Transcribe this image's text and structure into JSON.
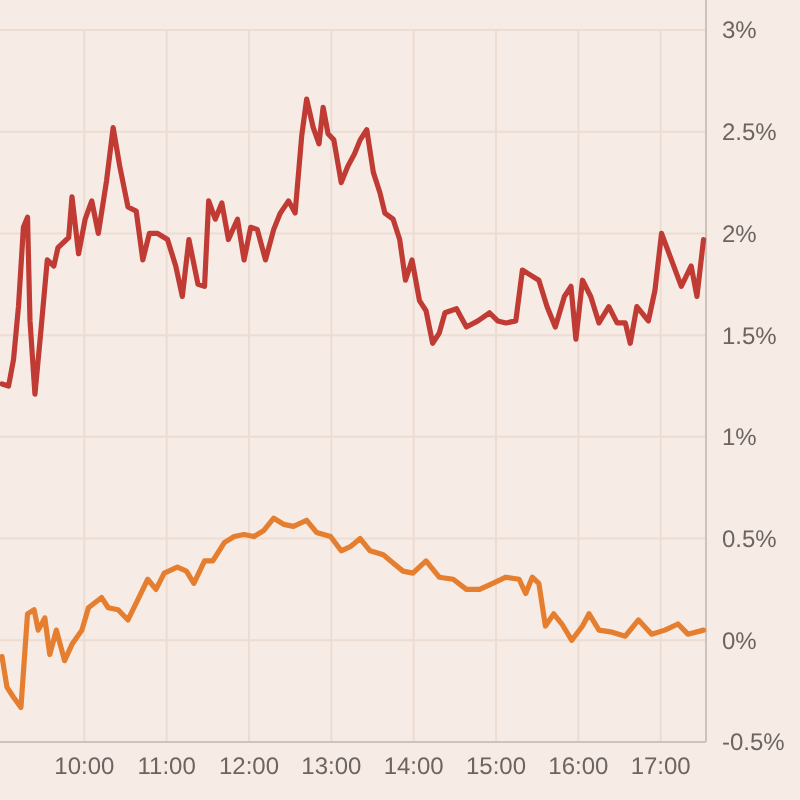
{
  "chart_data": {
    "type": "line",
    "xlim": [
      9,
      17.55
    ],
    "ylim": [
      -0.5,
      3
    ],
    "xticks": [
      {
        "value": 10,
        "label": "10:00"
      },
      {
        "value": 11,
        "label": "11:00"
      },
      {
        "value": 12,
        "label": "12:00"
      },
      {
        "value": 13,
        "label": "13:00"
      },
      {
        "value": 14,
        "label": "14:00"
      },
      {
        "value": 15,
        "label": "15:00"
      },
      {
        "value": 16,
        "label": "16:00"
      },
      {
        "value": 17,
        "label": "17:00"
      }
    ],
    "yticks": [
      {
        "value": -0.5,
        "label": "-0.5%"
      },
      {
        "value": 0,
        "label": "0%"
      },
      {
        "value": 0.5,
        "label": "0.5%"
      },
      {
        "value": 1,
        "label": "1%"
      },
      {
        "value": 1.5,
        "label": "1.5%"
      },
      {
        "value": 2,
        "label": "2%"
      },
      {
        "value": 2.5,
        "label": "2.5%"
      },
      {
        "value": 3,
        "label": "3%"
      }
    ],
    "grid": true,
    "marker": "none",
    "line_style": "solid",
    "series": [
      {
        "color": "#c13b35",
        "x": [
          9.0,
          9.08,
          9.14,
          9.2,
          9.26,
          9.31,
          9.34,
          9.4,
          9.47,
          9.55,
          9.63,
          9.68,
          9.81,
          9.85,
          9.93,
          10.01,
          10.09,
          10.17,
          10.27,
          10.35,
          10.43,
          10.53,
          10.63,
          10.71,
          10.79,
          10.89,
          11.01,
          11.11,
          11.19,
          11.27,
          11.38,
          11.46,
          11.51,
          11.59,
          11.67,
          11.75,
          11.86,
          11.94,
          12.02,
          12.1,
          12.2,
          12.3,
          12.38,
          12.48,
          12.56,
          12.64,
          12.7,
          12.78,
          12.85,
          12.9,
          12.96,
          13.03,
          13.12,
          13.2,
          13.28,
          13.35,
          13.43,
          13.51,
          13.59,
          13.65,
          13.75,
          13.83,
          13.9,
          13.98,
          14.07,
          14.15,
          14.23,
          14.31,
          14.38,
          14.52,
          14.64,
          14.78,
          14.92,
          15.02,
          15.12,
          15.24,
          15.32,
          15.4,
          15.52,
          15.62,
          15.72,
          15.83,
          15.91,
          15.97,
          16.05,
          16.15,
          16.25,
          16.37,
          16.47,
          16.57,
          16.63,
          16.71,
          16.85,
          16.93,
          17.01,
          17.13,
          17.25,
          17.37,
          17.44,
          17.52
        ],
        "values": [
          1.26,
          1.25,
          1.38,
          1.64,
          2.03,
          2.08,
          1.57,
          1.21,
          1.51,
          1.87,
          1.84,
          1.93,
          1.98,
          2.18,
          1.9,
          2.07,
          2.16,
          2.0,
          2.26,
          2.52,
          2.33,
          2.13,
          2.11,
          1.87,
          2.0,
          2.0,
          1.97,
          1.84,
          1.69,
          1.97,
          1.75,
          1.74,
          2.16,
          2.07,
          2.15,
          1.97,
          2.07,
          1.87,
          2.03,
          2.02,
          1.87,
          2.02,
          2.1,
          2.16,
          2.1,
          2.48,
          2.66,
          2.52,
          2.44,
          2.62,
          2.49,
          2.46,
          2.25,
          2.33,
          2.39,
          2.46,
          2.51,
          2.3,
          2.2,
          2.1,
          2.07,
          1.97,
          1.77,
          1.87,
          1.67,
          1.62,
          1.46,
          1.51,
          1.61,
          1.63,
          1.54,
          1.57,
          1.61,
          1.57,
          1.56,
          1.57,
          1.82,
          1.8,
          1.77,
          1.64,
          1.54,
          1.69,
          1.74,
          1.48,
          1.77,
          1.69,
          1.56,
          1.64,
          1.56,
          1.56,
          1.46,
          1.64,
          1.57,
          1.72,
          2.0,
          1.87,
          1.74,
          1.84,
          1.69,
          1.97
        ]
      },
      {
        "color": "#e57e2e",
        "x": [
          9.0,
          9.06,
          9.14,
          9.23,
          9.31,
          9.39,
          9.44,
          9.52,
          9.58,
          9.66,
          9.76,
          9.85,
          9.97,
          10.05,
          10.21,
          10.29,
          10.41,
          10.53,
          10.65,
          10.77,
          10.87,
          10.97,
          11.13,
          11.24,
          11.33,
          11.46,
          11.56,
          11.7,
          11.82,
          11.94,
          12.06,
          12.18,
          12.3,
          12.42,
          12.54,
          12.7,
          12.82,
          12.99,
          13.12,
          13.23,
          13.35,
          13.47,
          13.63,
          13.75,
          13.87,
          13.99,
          14.15,
          14.31,
          14.48,
          14.64,
          14.8,
          14.96,
          15.12,
          15.28,
          15.36,
          15.44,
          15.52,
          15.6,
          15.7,
          15.8,
          15.92,
          16.05,
          16.13,
          16.25,
          16.41,
          16.57,
          16.73,
          16.89,
          17.05,
          17.21,
          17.33,
          17.52
        ],
        "values": [
          -0.08,
          -0.23,
          -0.28,
          -0.33,
          0.13,
          0.15,
          0.05,
          0.11,
          -0.07,
          0.05,
          -0.1,
          -0.02,
          0.05,
          0.16,
          0.21,
          0.16,
          0.15,
          0.1,
          0.2,
          0.3,
          0.25,
          0.33,
          0.36,
          0.34,
          0.28,
          0.39,
          0.39,
          0.48,
          0.51,
          0.52,
          0.51,
          0.54,
          0.6,
          0.57,
          0.56,
          0.59,
          0.53,
          0.51,
          0.44,
          0.46,
          0.5,
          0.44,
          0.42,
          0.38,
          0.34,
          0.33,
          0.39,
          0.31,
          0.3,
          0.25,
          0.25,
          0.28,
          0.31,
          0.3,
          0.23,
          0.31,
          0.28,
          0.07,
          0.13,
          0.08,
          0.0,
          0.07,
          0.13,
          0.05,
          0.04,
          0.02,
          0.1,
          0.03,
          0.05,
          0.08,
          0.03,
          0.05
        ]
      }
    ]
  }
}
